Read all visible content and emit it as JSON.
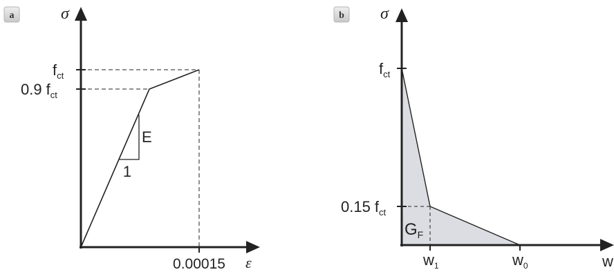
{
  "panel_a": {
    "badge": "a",
    "y_axis_label": "σ",
    "x_axis_label": "ε",
    "y_tick_fct": {
      "main": "f",
      "sub": "ct"
    },
    "y_tick_09fct": {
      "coef": "0.9",
      "main": "f",
      "sub": "ct"
    },
    "x_tick_strain": "0.00015",
    "slope_label": "E",
    "slope_base_label": "1"
  },
  "panel_b": {
    "badge": "b",
    "y_axis_label": "σ",
    "x_axis_label": "w",
    "y_tick_fct": {
      "main": "f",
      "sub": "ct"
    },
    "y_tick_015fct": {
      "coef": "0.15",
      "main": "f",
      "sub": "ct"
    },
    "x_tick_w1": {
      "main": "w",
      "sub": "1"
    },
    "x_tick_w0": {
      "main": "w",
      "sub": "0"
    },
    "area_label": {
      "main": "G",
      "sub": "F"
    }
  },
  "colors": {
    "line": "#222222",
    "fill": "#dcdde2",
    "badge_bg": "#d9d9d9"
  }
}
